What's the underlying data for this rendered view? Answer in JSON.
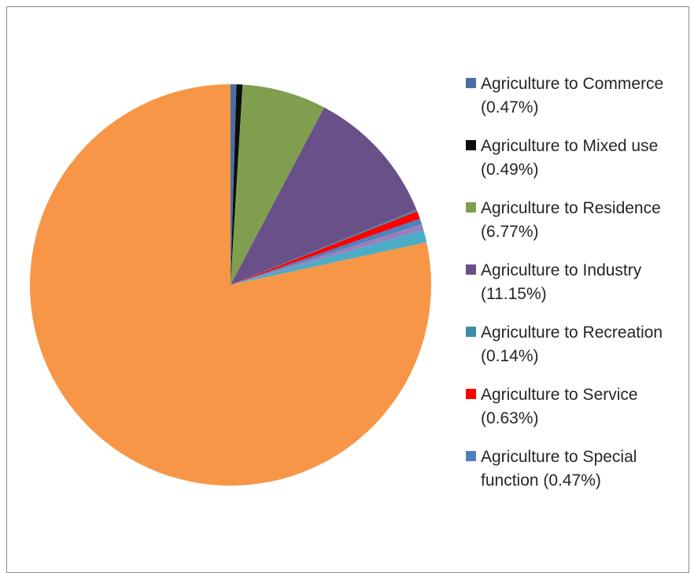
{
  "chart_data": {
    "type": "pie",
    "title": "",
    "legend_position": "right",
    "start_angle_deg": 0,
    "direction": "clockwise",
    "slices": [
      {
        "label": "Agriculture to Commerce (0.47%)",
        "value": 0.47,
        "color": "#4a6fa5",
        "in_legend": true
      },
      {
        "label": "Agriculture to Mixed use (0.49%)",
        "value": 0.49,
        "color": "#0d0d0d",
        "in_legend": true
      },
      {
        "label": "Agriculture to Residence (6.77%)",
        "value": 6.77,
        "color": "#7f9f4f",
        "in_legend": true
      },
      {
        "label": "Agriculture to Industry (11.15%)",
        "value": 11.15,
        "color": "#6a5088",
        "in_legend": true
      },
      {
        "label": "Agriculture to Recreation (0.14%)",
        "value": 0.14,
        "color": "#3b8ea5",
        "in_legend": true
      },
      {
        "label": "Agriculture to Service (0.63%)",
        "value": 0.63,
        "color": "#ff0000",
        "in_legend": true
      },
      {
        "label": "Agriculture to Special function (0.47%)",
        "value": 0.47,
        "color": "#4f81bd",
        "in_legend": true
      },
      {
        "label": "",
        "value": 0.47,
        "color": "#9a7fba",
        "in_legend": false
      },
      {
        "label": "",
        "value": 1.0,
        "color": "#4bacc6",
        "in_legend": false
      },
      {
        "label": "",
        "value": 78.41,
        "color": "#f79646",
        "in_legend": false
      }
    ]
  }
}
